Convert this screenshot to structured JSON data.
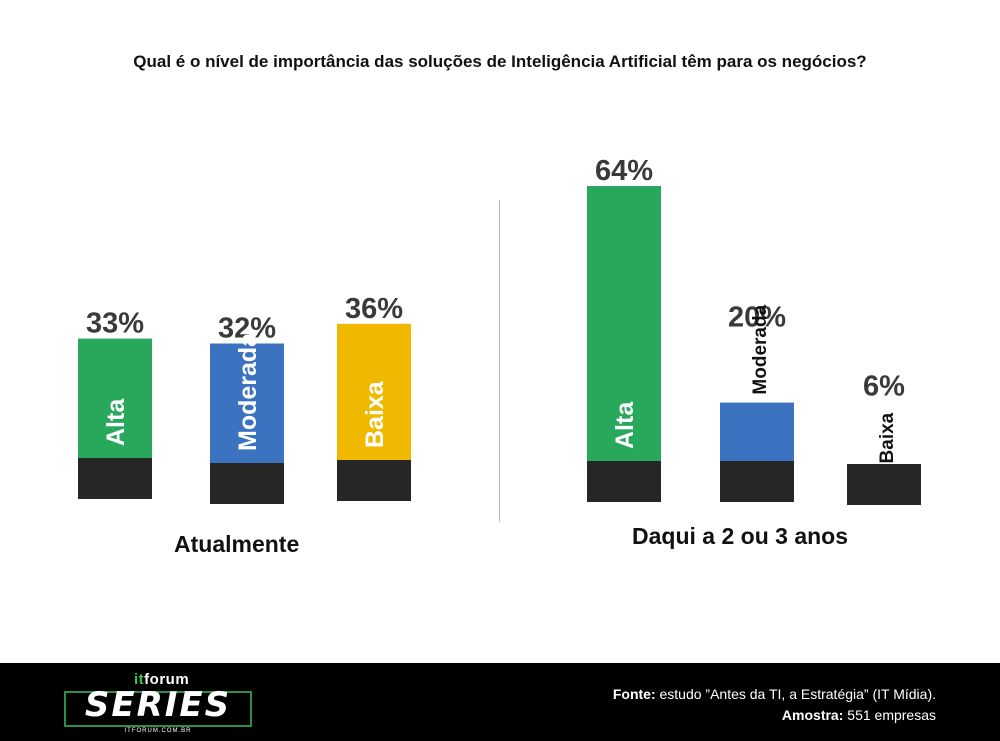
{
  "title": "Qual é o nível de importância das soluções de Inteligência Artificial têm para os negócios?",
  "chart_data": {
    "type": "bar",
    "groups": [
      {
        "name": "Atualmente",
        "categories": [
          "Alta",
          "Moderada",
          "Baixa"
        ],
        "values": [
          33,
          32,
          36
        ],
        "labels": [
          "33%",
          "32%",
          "36%"
        ]
      },
      {
        "name": "Daqui a 2 ou 3 anos",
        "categories": [
          "Alta",
          "Moderada",
          "Baixa"
        ],
        "values": [
          64,
          20,
          6
        ],
        "labels": [
          "64%",
          "20%",
          "6%"
        ]
      }
    ],
    "colors": {
      "Alta": "#27a85a",
      "Moderada": "#3b73c1",
      "Baixa": "#f1b800",
      "base": "#262626"
    },
    "ylim": [
      0,
      64
    ],
    "grid": false,
    "legend": "none"
  },
  "footer": {
    "logo": {
      "top_prefix": "it",
      "top_word": "forum",
      "main": "SERIES",
      "url": "ITFORUM.COM.BR"
    },
    "source_label": "Fonte:",
    "source_text": " estudo ”Antes da TI, a Estratégia” (IT Mídia).",
    "sample_label": "Amostra:",
    "sample_text": " 551 empresas"
  }
}
